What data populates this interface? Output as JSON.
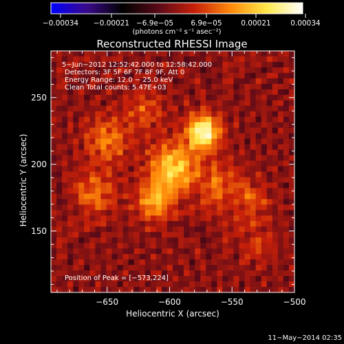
{
  "colorbar": {
    "tick_labels": [
      "−0.00034",
      "−0.00021",
      "−6.9e−05",
      "6.9e−05",
      "0.00021",
      "0.00034"
    ],
    "unit_label": "(photons cm⁻² s⁻¹ asec⁻²)",
    "range": [
      -0.00034,
      0.00034
    ],
    "colormap": [
      "#0000ff",
      "#3a0a8a",
      "#000000",
      "#5a0a18",
      "#c8200a",
      "#ff8a0a",
      "#ffe84a",
      "#ffffff"
    ]
  },
  "chart_data": {
    "type": "heatmap",
    "title": "Reconstructed RHESSI Image",
    "xlabel": "Heliocentric X (arcsec)",
    "ylabel": "Heliocentric Y (arcsec)",
    "xlim": [
      -695,
      -500
    ],
    "ylim": [
      104,
      285
    ],
    "x_ticks": [
      -650,
      -600,
      -550,
      -500
    ],
    "x_tick_labels": [
      "−650",
      "−600",
      "−550",
      "−500"
    ],
    "y_ticks": [
      150,
      200,
      250
    ],
    "y_tick_labels": [
      "150",
      "200",
      "250"
    ],
    "annotations": [
      "5−Jun−2012 12:52:42.000 to 12:58:42.000",
      "Detectors: 3F 5F 6F 7F 8F 9F, Att 0",
      "Energy Range: 12.0 − 25.0 keV",
      "Clean     Total counts: 5.47E+03"
    ],
    "peak_label": "Position of Peak = [−573,224]",
    "peak_position": [
      -573,
      224
    ],
    "sources": [
      {
        "x": -573,
        "y": 224,
        "amplitude": 1.0,
        "sigma": 9
      },
      {
        "x": -597,
        "y": 197,
        "amplitude": 0.72,
        "sigma": 13
      },
      {
        "x": -612,
        "y": 172,
        "amplitude": 0.55,
        "sigma": 10
      },
      {
        "x": -650,
        "y": 218,
        "amplitude": 0.42,
        "sigma": 12
      },
      {
        "x": -660,
        "y": 178,
        "amplitude": 0.38,
        "sigma": 12
      },
      {
        "x": -560,
        "y": 185,
        "amplitude": 0.34,
        "sigma": 12
      },
      {
        "x": -535,
        "y": 172,
        "amplitude": 0.3,
        "sigma": 10
      },
      {
        "x": -620,
        "y": 240,
        "amplitude": 0.28,
        "sigma": 11
      },
      {
        "x": -530,
        "y": 140,
        "amplitude": 0.22,
        "sigma": 10
      }
    ]
  },
  "footer": {
    "timestamp": "11−May−2014 02:35"
  }
}
